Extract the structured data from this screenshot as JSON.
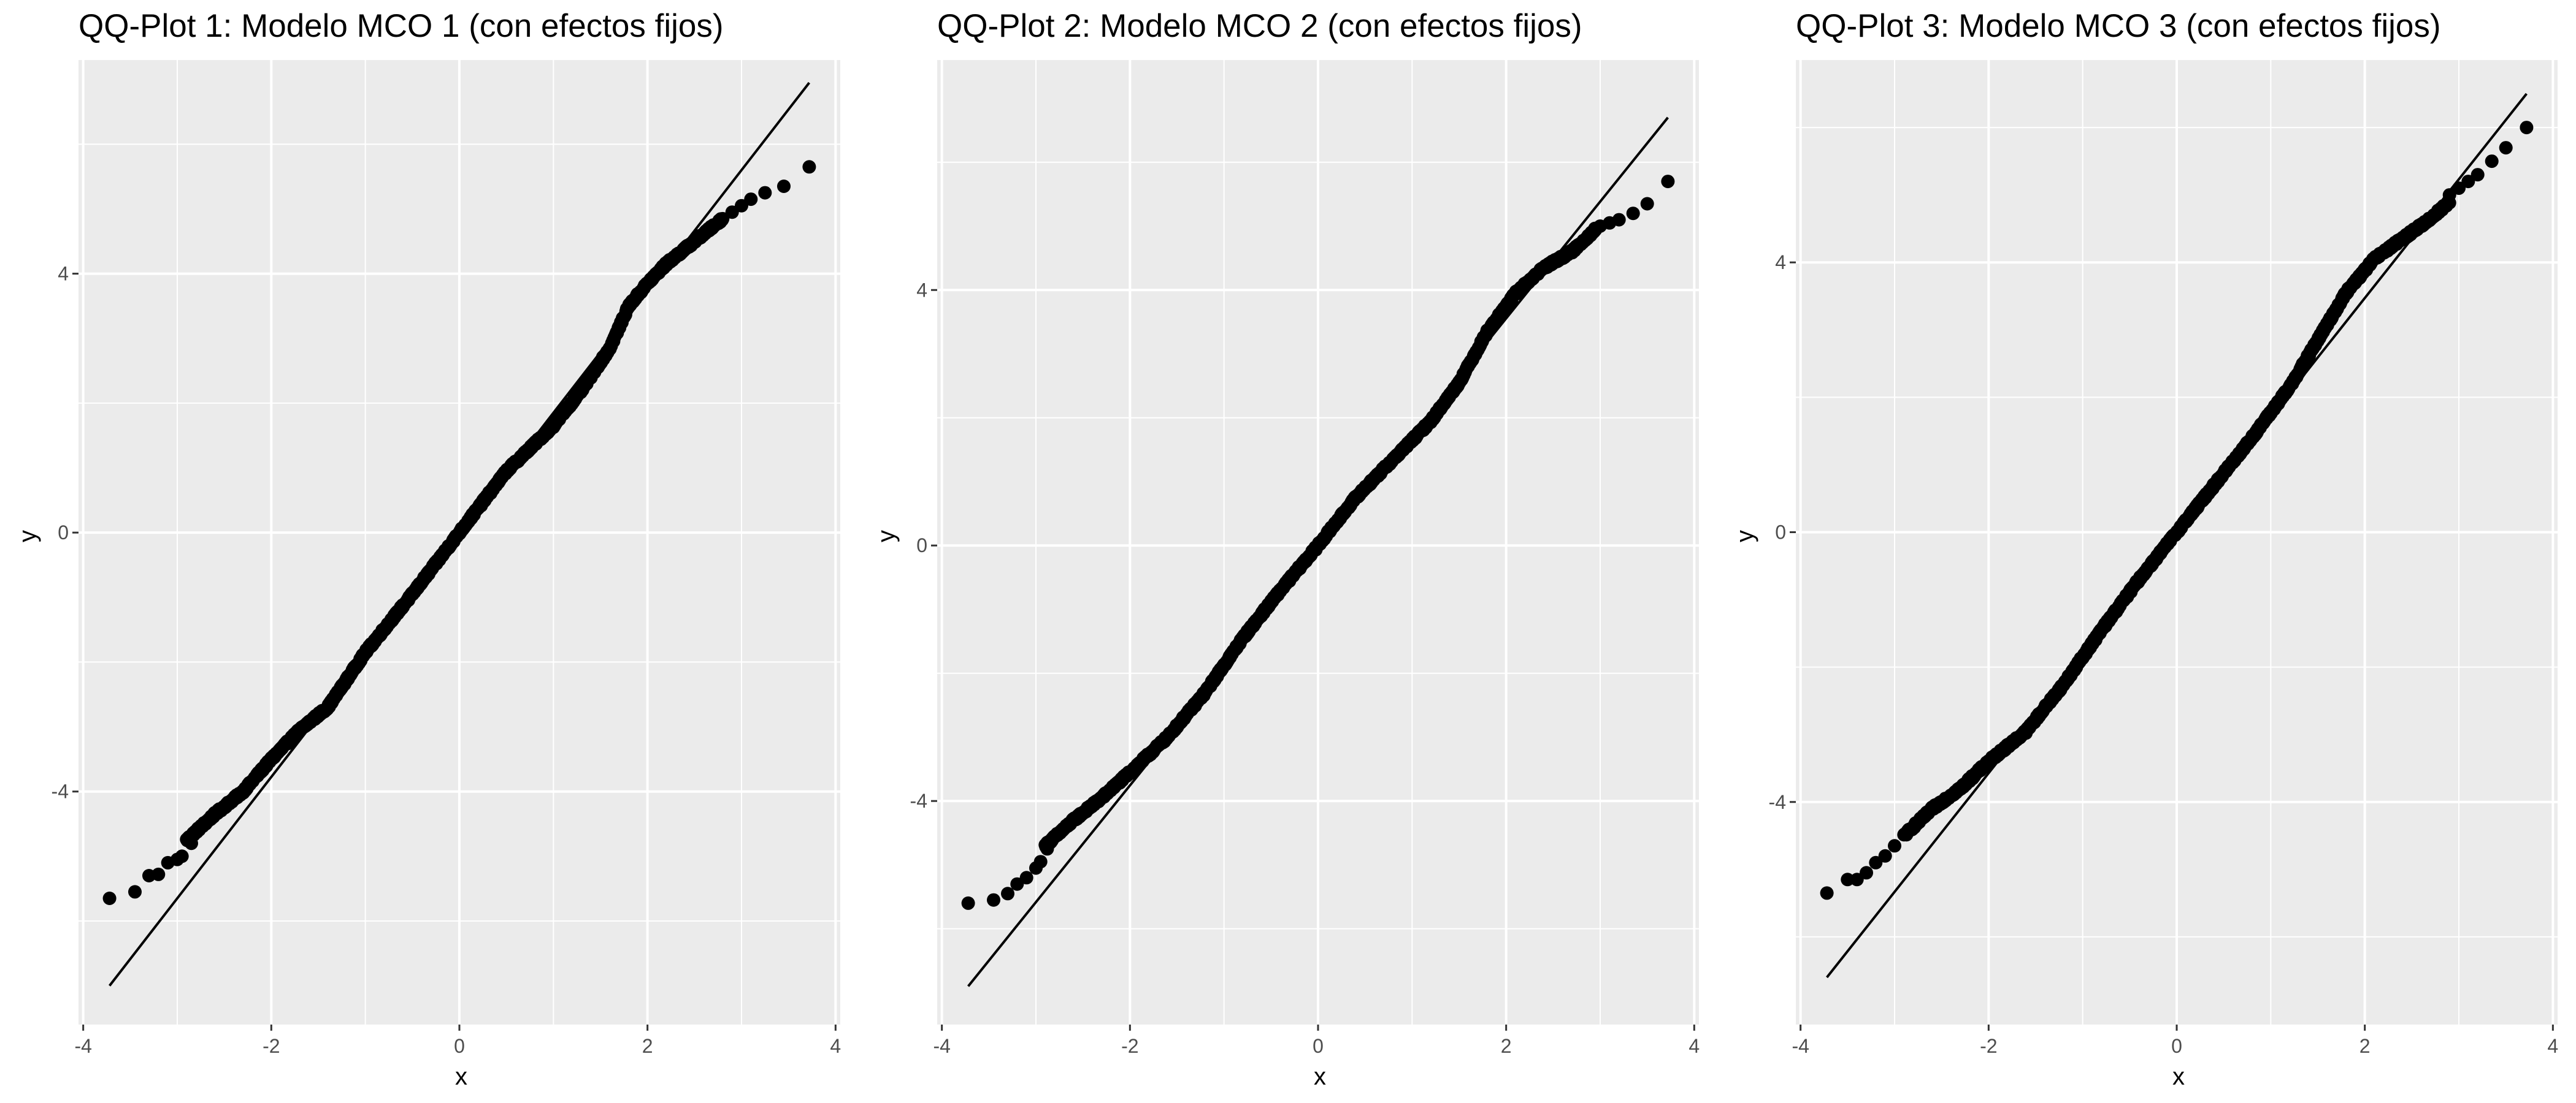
{
  "chart_data": [
    {
      "type": "scatter",
      "title": "QQ-Plot 1: Modelo MCO 1 (con efectos fijos)",
      "xlabel": "x",
      "ylabel": "y",
      "xlim": [
        -4.05,
        4.05
      ],
      "ylim": [
        -7.6,
        7.3
      ],
      "x_ticks": [
        -4,
        -2,
        0,
        2,
        4
      ],
      "y_ticks": [
        -4,
        0,
        4
      ],
      "grid": true,
      "legend": "none",
      "colors": {
        "panel_bg": "#EBEBEB",
        "grid": "#FFFFFF",
        "points": "#000000",
        "line": "#000000"
      },
      "reference_line": {
        "x": [
          -3.72,
          3.72
        ],
        "y": [
          -7.0,
          6.95
        ]
      },
      "tail_points": {
        "x": [
          -3.72,
          -3.45,
          -3.3,
          -3.2,
          -3.1,
          -3.0,
          -2.95,
          -2.85,
          2.9,
          3.0,
          3.1,
          3.25,
          3.45,
          3.72
        ],
        "y": [
          -5.65,
          -5.55,
          -5.3,
          -5.28,
          -5.1,
          -5.05,
          -5.0,
          -4.8,
          4.95,
          5.05,
          5.15,
          5.25,
          5.35,
          5.65
        ]
      },
      "body_curve": {
        "x": [
          -2.9,
          -2.6,
          -2.3,
          -2.0,
          -1.7,
          -1.4,
          -1.0,
          -0.5,
          0.0,
          0.5,
          1.0,
          1.3,
          1.6,
          1.8,
          2.0,
          2.2,
          2.5,
          2.8
        ],
        "y": [
          -4.75,
          -4.35,
          -4.0,
          -3.5,
          -3.05,
          -2.7,
          -1.85,
          -0.95,
          0.0,
          0.95,
          1.65,
          2.2,
          2.85,
          3.5,
          3.85,
          4.15,
          4.5,
          4.85
        ]
      }
    },
    {
      "type": "scatter",
      "title": "QQ-Plot 2: Modelo MCO 2 (con efectos fijos)",
      "xlabel": "x",
      "ylabel": "y",
      "xlim": [
        -4.05,
        4.05
      ],
      "ylim": [
        -7.5,
        7.6
      ],
      "x_ticks": [
        -4,
        -2,
        0,
        2,
        4
      ],
      "y_ticks": [
        -4,
        0,
        4
      ],
      "grid": true,
      "legend": "none",
      "colors": {
        "panel_bg": "#EBEBEB",
        "grid": "#FFFFFF",
        "points": "#000000",
        "line": "#000000"
      },
      "reference_line": {
        "x": [
          -3.72,
          3.72
        ],
        "y": [
          -6.9,
          6.7
        ]
      },
      "tail_points": {
        "x": [
          -3.72,
          -3.45,
          -3.3,
          -3.2,
          -3.1,
          -3.0,
          -2.95,
          -2.88,
          3.0,
          3.1,
          3.2,
          3.35,
          3.5,
          3.72
        ],
        "y": [
          -5.6,
          -5.55,
          -5.45,
          -5.3,
          -5.2,
          -5.05,
          -4.95,
          -4.75,
          5.0,
          5.05,
          5.1,
          5.2,
          5.35,
          5.7
        ]
      },
      "body_curve": {
        "x": [
          -2.9,
          -2.6,
          -2.3,
          -2.0,
          -1.6,
          -1.2,
          -0.8,
          -0.4,
          0.0,
          0.4,
          0.8,
          1.2,
          1.5,
          1.8,
          2.1,
          2.4,
          2.7,
          2.95
        ],
        "y": [
          -4.7,
          -4.3,
          -3.95,
          -3.55,
          -3.0,
          -2.3,
          -1.45,
          -0.7,
          0.0,
          0.75,
          1.35,
          1.95,
          2.55,
          3.35,
          3.95,
          4.35,
          4.6,
          4.95
        ]
      }
    },
    {
      "type": "scatter",
      "title": "QQ-Plot 3: Modelo MCO 3 (con efectos fijos)",
      "xlabel": "x",
      "ylabel": "y",
      "xlim": [
        -4.05,
        4.05
      ],
      "ylim": [
        -7.3,
        7.0
      ],
      "x_ticks": [
        -4,
        -2,
        0,
        2,
        4
      ],
      "y_ticks": [
        -4,
        0,
        4
      ],
      "grid": true,
      "legend": "none",
      "colors": {
        "panel_bg": "#EBEBEB",
        "grid": "#FFFFFF",
        "points": "#000000",
        "line": "#000000"
      },
      "reference_line": {
        "x": [
          -3.72,
          3.72
        ],
        "y": [
          -6.6,
          6.5
        ]
      },
      "tail_points": {
        "x": [
          -3.72,
          -3.5,
          -3.4,
          -3.3,
          -3.2,
          -3.1,
          -3.0,
          2.9,
          3.0,
          3.1,
          3.2,
          3.35,
          3.5,
          3.72
        ],
        "y": [
          -5.35,
          -5.15,
          -5.15,
          -5.05,
          -4.9,
          -4.8,
          -4.65,
          5.0,
          5.1,
          5.2,
          5.3,
          5.5,
          5.7,
          6.0
        ]
      },
      "body_curve": {
        "x": [
          -2.9,
          -2.6,
          -2.3,
          -2.0,
          -1.6,
          -1.2,
          -0.8,
          -0.4,
          0.0,
          0.4,
          0.8,
          1.2,
          1.5,
          1.8,
          2.1,
          2.4,
          2.7,
          2.9
        ],
        "y": [
          -4.5,
          -4.1,
          -3.8,
          -3.4,
          -2.95,
          -2.25,
          -1.45,
          -0.7,
          0.0,
          0.7,
          1.4,
          2.15,
          2.85,
          3.55,
          4.05,
          4.35,
          4.65,
          4.9
        ]
      }
    }
  ]
}
